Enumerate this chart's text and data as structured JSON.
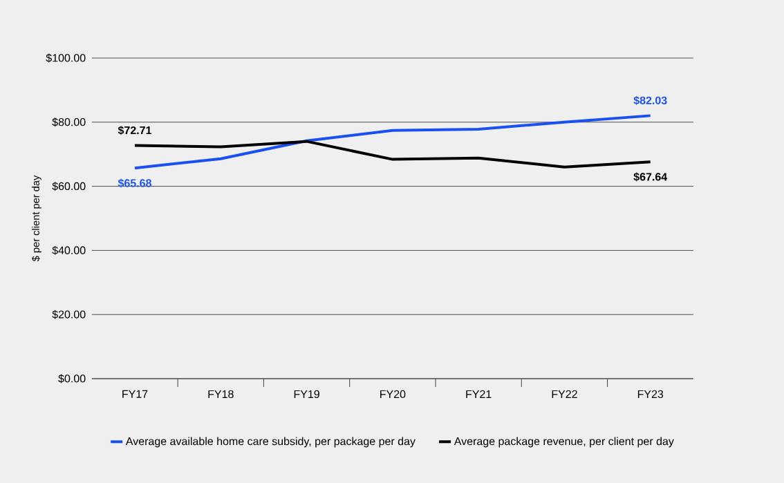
{
  "chart_data": {
    "type": "line",
    "ylabel": "$ per client per day",
    "categories": [
      "FY17",
      "FY18",
      "FY19",
      "FY20",
      "FY21",
      "FY22",
      "FY23"
    ],
    "series": [
      {
        "name": "Average available home care subsidy, per package per day",
        "color": "#1a4ff0",
        "values": [
          65.68,
          68.6,
          74.2,
          77.4,
          77.8,
          80.0,
          82.03
        ],
        "value_labels": [
          "$65.68",
          null,
          null,
          null,
          null,
          null,
          "$82.03"
        ]
      },
      {
        "name": "Average package revenue, per client per day",
        "color": "#000000",
        "values": [
          72.71,
          72.3,
          74.0,
          68.4,
          68.8,
          66.0,
          67.64
        ],
        "value_labels": [
          "$72.71",
          null,
          null,
          null,
          null,
          null,
          "$67.64"
        ]
      }
    ],
    "ylim": [
      0,
      100
    ],
    "yticks": [
      {
        "value": 0,
        "label": "$0.00"
      },
      {
        "value": 20,
        "label": "$20.00"
      },
      {
        "value": 40,
        "label": "$40.00"
      },
      {
        "value": 60,
        "label": "$60.00"
      },
      {
        "value": 80,
        "label": "$80.00"
      },
      {
        "value": 100,
        "label": "$100.00"
      }
    ],
    "grid": "y",
    "legend": "bottom",
    "marker": "none",
    "line_style": "solid"
  }
}
